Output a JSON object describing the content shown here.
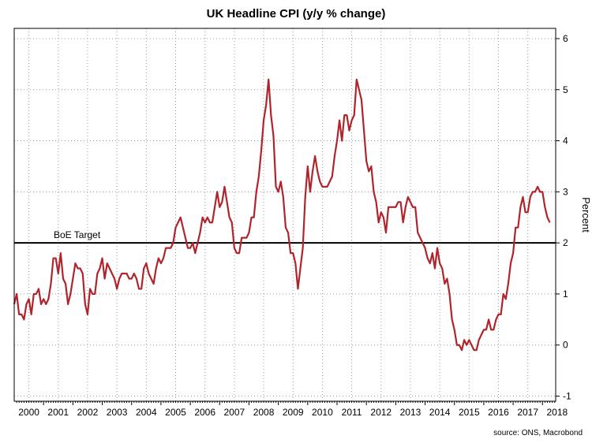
{
  "chart_data": {
    "type": "line",
    "title": "UK Headline CPI (y/y % change)",
    "ylabel": "Percent",
    "source": "source: ONS, Macrobond",
    "y_axis_side": "right",
    "ylim": [
      -1.1,
      6.2
    ],
    "yticks": [
      -1,
      0,
      1,
      2,
      3,
      4,
      5,
      6
    ],
    "xlim": [
      2000.0,
      2018.45
    ],
    "xticks": [
      "2000",
      "2001",
      "2002",
      "2003",
      "2004",
      "2005",
      "2006",
      "2007",
      "2008",
      "2009",
      "2010",
      "2011",
      "2012",
      "2013",
      "2014",
      "2015",
      "2016",
      "2017",
      "2018"
    ],
    "grid": true,
    "series": [
      {
        "color": "#b0242c",
        "x_start": "2000-01",
        "x_step": "month",
        "values": [
          0.8,
          1.0,
          0.6,
          0.6,
          0.5,
          0.8,
          0.9,
          0.6,
          1.0,
          1.0,
          1.1,
          0.8,
          0.9,
          0.8,
          0.9,
          1.2,
          1.7,
          1.7,
          1.4,
          1.8,
          1.3,
          1.2,
          0.8,
          1.0,
          1.3,
          1.6,
          1.5,
          1.5,
          1.4,
          0.8,
          0.6,
          1.1,
          1.0,
          1.0,
          1.4,
          1.5,
          1.7,
          1.3,
          1.6,
          1.5,
          1.4,
          1.3,
          1.1,
          1.3,
          1.4,
          1.4,
          1.4,
          1.3,
          1.3,
          1.4,
          1.3,
          1.1,
          1.1,
          1.5,
          1.6,
          1.4,
          1.3,
          1.2,
          1.5,
          1.7,
          1.6,
          1.7,
          1.9,
          1.9,
          1.9,
          2.0,
          2.3,
          2.4,
          2.5,
          2.3,
          2.1,
          1.9,
          1.9,
          2.0,
          1.8,
          2.0,
          2.2,
          2.5,
          2.4,
          2.5,
          2.4,
          2.4,
          2.7,
          3.0,
          2.7,
          2.8,
          3.1,
          2.8,
          2.5,
          2.4,
          1.9,
          1.8,
          1.8,
          2.1,
          2.1,
          2.1,
          2.2,
          2.5,
          2.5,
          3.0,
          3.3,
          3.8,
          4.4,
          4.7,
          5.2,
          4.5,
          4.1,
          3.1,
          3.0,
          3.2,
          2.9,
          2.3,
          2.2,
          1.8,
          1.8,
          1.6,
          1.1,
          1.5,
          1.9,
          2.9,
          3.5,
          3.0,
          3.4,
          3.7,
          3.4,
          3.2,
          3.1,
          3.1,
          3.1,
          3.2,
          3.3,
          3.7,
          4.0,
          4.4,
          4.0,
          4.5,
          4.5,
          4.2,
          4.4,
          4.5,
          5.2,
          5.0,
          4.8,
          4.2,
          3.6,
          3.4,
          3.5,
          3.0,
          2.8,
          2.4,
          2.6,
          2.5,
          2.2,
          2.7,
          2.7,
          2.7,
          2.7,
          2.8,
          2.8,
          2.4,
          2.7,
          2.9,
          2.8,
          2.7,
          2.7,
          2.2,
          2.1,
          2.0,
          1.9,
          1.7,
          1.6,
          1.8,
          1.5,
          1.9,
          1.6,
          1.5,
          1.2,
          1.3,
          1.0,
          0.5,
          0.3,
          0.0,
          0.0,
          -0.1,
          0.1,
          0.0,
          0.1,
          0.0,
          -0.1,
          -0.1,
          0.1,
          0.2,
          0.3,
          0.3,
          0.5,
          0.3,
          0.3,
          0.5,
          0.6,
          0.6,
          1.0,
          0.9,
          1.2,
          1.6,
          1.8,
          2.3,
          2.3,
          2.7,
          2.9,
          2.6,
          2.6,
          2.9,
          3.0,
          3.0,
          3.1,
          3.0,
          3.0,
          2.7,
          2.5,
          2.4
        ]
      }
    ],
    "reference_line": {
      "label": "BoE Target",
      "y": 2.0
    }
  }
}
